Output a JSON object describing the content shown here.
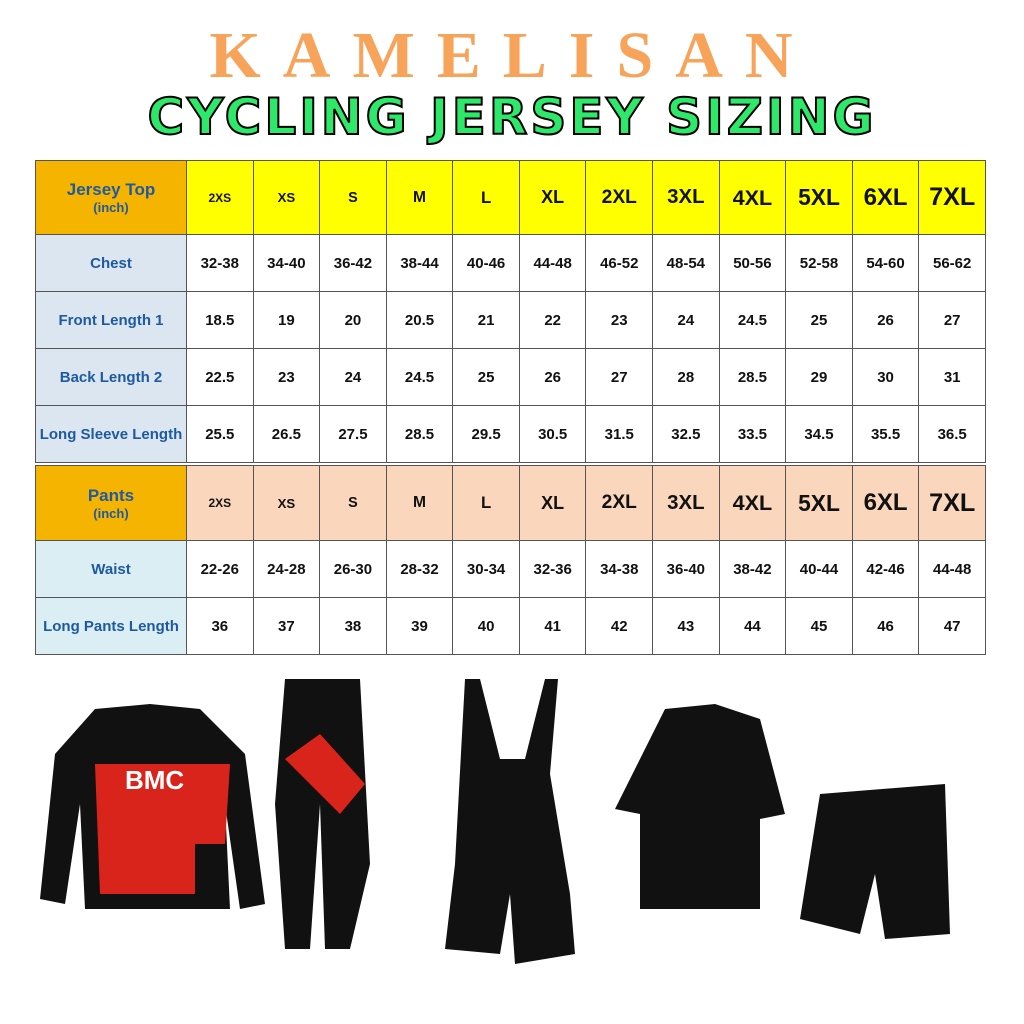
{
  "header": {
    "brand": "KAMELISAN",
    "title": "CYCLING JERSEY SIZING"
  },
  "tables": [
    {
      "heading": "Jersey Top",
      "unit": "(inch)",
      "sizes": [
        "2XS",
        "XS",
        "S",
        "M",
        "L",
        "XL",
        "2XL",
        "3XL",
        "4XL",
        "5XL",
        "6XL",
        "7XL"
      ],
      "rows": [
        {
          "label": "Chest",
          "values": [
            "32-38",
            "34-40",
            "36-42",
            "38-44",
            "40-46",
            "44-48",
            "46-52",
            "48-54",
            "50-56",
            "52-58",
            "54-60",
            "56-62"
          ]
        },
        {
          "label": "Front Length 1",
          "values": [
            "18.5",
            "19",
            "20",
            "20.5",
            "21",
            "22",
            "23",
            "24",
            "24.5",
            "25",
            "26",
            "27"
          ]
        },
        {
          "label": "Back Length 2",
          "values": [
            "22.5",
            "23",
            "24",
            "24.5",
            "25",
            "26",
            "27",
            "28",
            "28.5",
            "29",
            "30",
            "31"
          ]
        },
        {
          "label": "Long Sleeve Length",
          "values": [
            "25.5",
            "26.5",
            "27.5",
            "28.5",
            "29.5",
            "30.5",
            "31.5",
            "32.5",
            "33.5",
            "34.5",
            "35.5",
            "36.5"
          ]
        }
      ]
    },
    {
      "heading": "Pants",
      "unit": "(inch)",
      "sizes": [
        "2XS",
        "XS",
        "S",
        "M",
        "L",
        "XL",
        "2XL",
        "3XL",
        "4XL",
        "5XL",
        "6XL",
        "7XL"
      ],
      "rows": [
        {
          "label": "Waist",
          "values": [
            "22-26",
            "24-28",
            "26-30",
            "28-32",
            "30-34",
            "32-36",
            "34-38",
            "36-40",
            "38-42",
            "40-44",
            "42-46",
            "44-48"
          ]
        },
        {
          "label": "Long Pants Length",
          "values": [
            "36",
            "37",
            "38",
            "39",
            "40",
            "41",
            "42",
            "43",
            "44",
            "45",
            "46",
            "47"
          ]
        }
      ]
    }
  ]
}
